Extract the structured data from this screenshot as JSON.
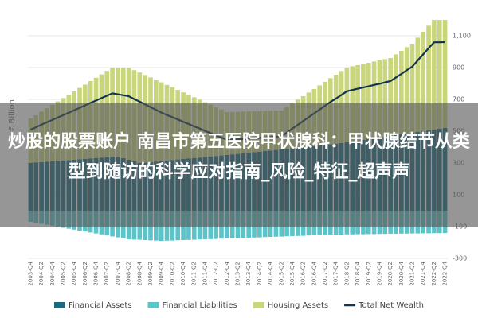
{
  "overlay_title": "炒股的股票账户 南昌市第五医院甲状腺科：甲状腺结节从类型到随访的科学应对指南_风险_特征_超声声",
  "chart_data": {
    "type": "bar",
    "stacked": true,
    "y_label": "€ Billion",
    "categories": [
      "2003-Q4",
      null,
      "2004-Q2",
      null,
      "2004-Q4",
      null,
      "2005-Q2",
      null,
      "2005-Q4",
      null,
      "2006-Q2",
      null,
      "2006-Q4",
      null,
      "2007-Q2",
      null,
      "2007-Q4",
      null,
      "2008-Q2",
      null,
      "2008-Q4",
      null,
      "2009-Q2",
      null,
      "2009-Q4",
      null,
      "2010-Q2",
      null,
      "2010-Q4",
      null,
      "2011-Q2",
      null,
      "2011-Q4",
      null,
      "2012-Q2",
      null,
      "2012-Q4",
      null,
      "2013-Q2",
      null,
      "2013-Q4",
      null,
      "2014-Q2",
      null,
      "2014-Q4",
      null,
      "2015-Q2",
      null,
      "2015-Q4",
      null,
      "2016-Q2",
      null,
      "2016-Q4",
      null,
      "2017-Q2",
      null,
      "2017-Q4",
      null,
      "2018-Q2",
      null,
      "2018-Q4",
      null,
      "2019-Q2",
      null,
      "2019-Q4",
      null,
      "2020-Q2",
      null,
      "2020-Q4",
      null,
      "2021-Q2",
      null,
      "2021-Q4",
      null,
      "2022-Q2",
      null,
      "2022-Q4"
    ],
    "series": [
      {
        "name": "Financial Assets",
        "color": "#1b6a7e",
        "values": [
          300,
          303,
          305,
          308,
          310,
          313,
          315,
          318,
          320,
          323,
          325,
          328,
          330,
          333,
          335,
          338,
          340,
          330,
          320,
          310,
          300,
          303,
          306,
          309,
          313,
          316,
          319,
          322,
          325,
          328,
          331,
          334,
          338,
          341,
          344,
          347,
          350,
          354,
          357,
          361,
          364,
          368,
          371,
          375,
          378,
          382,
          385,
          389,
          392,
          396,
          399,
          403,
          406,
          410,
          413,
          417,
          420,
          425,
          430,
          435,
          440,
          445,
          450,
          455,
          460,
          465,
          470,
          475,
          480,
          485,
          490,
          495,
          500,
          505,
          510,
          515,
          520
        ]
      },
      {
        "name": "Financial Liabilities",
        "color": "#5cc3c8",
        "values": [
          -70,
          -76,
          -82,
          -88,
          -94,
          -101,
          -107,
          -113,
          -119,
          -125,
          -131,
          -137,
          -143,
          -149,
          -156,
          -162,
          -168,
          -174,
          -180,
          -182,
          -183,
          -185,
          -187,
          -188,
          -190,
          -189,
          -188,
          -186,
          -185,
          -184,
          -183,
          -181,
          -180,
          -179,
          -178,
          -176,
          -175,
          -174,
          -173,
          -171,
          -170,
          -169,
          -168,
          -166,
          -165,
          -164,
          -163,
          -161,
          -160,
          -159,
          -158,
          -156,
          -155,
          -154,
          -153,
          -151,
          -150,
          -150,
          -149,
          -149,
          -148,
          -148,
          -147,
          -147,
          -146,
          -146,
          -145,
          -145,
          -144,
          -144,
          -143,
          -143,
          -142,
          -142,
          -141,
          -141,
          -140
        ]
      },
      {
        "name": "Housing Assets",
        "color": "#c9d67b",
        "values": [
          280,
          298,
          318,
          336,
          355,
          374,
          393,
          411,
          431,
          449,
          468,
          487,
          506,
          524,
          544,
          562,
          560,
          570,
          580,
          574,
          569,
          550,
          532,
          513,
          494,
          475,
          457,
          438,
          419,
          401,
          382,
          364,
          344,
          326,
          307,
          289,
          270,
          267,
          265,
          262,
          260,
          257,
          255,
          252,
          250,
          247,
          245,
          264,
          283,
          302,
          321,
          340,
          359,
          378,
          397,
          416,
          435,
          453,
          470,
          473,
          475,
          478,
          480,
          483,
          485,
          488,
          490,
          508,
          525,
          543,
          560,
          593,
          625,
          658,
          690,
          685,
          680
        ]
      },
      {
        "name": "Total Net Wealth",
        "color": "#14344c",
        "type": "line",
        "values": [
          510,
          525,
          541,
          556,
          571,
          586,
          601,
          616,
          632,
          647,
          662,
          678,
          693,
          708,
          723,
          738,
          732,
          726,
          720,
          702,
          686,
          668,
          651,
          634,
          617,
          602,
          588,
          574,
          559,
          545,
          530,
          517,
          502,
          488,
          473,
          460,
          446,
          448,
          449,
          450,
          454,
          456,
          458,
          461,
          463,
          465,
          467,
          492,
          516,
          540,
          564,
          588,
          612,
          636,
          660,
          684,
          705,
          728,
          751,
          759,
          767,
          775,
          782,
          791,
          798,
          807,
          815,
          838,
          860,
          884,
          906,
          945,
          983,
          1022,
          1059,
          1059,
          1060
        ]
      }
    ],
    "ylim": [
      -300,
      1200
    ],
    "yticks": [
      {
        "value": -300,
        "label": "-300"
      },
      {
        "value": -100,
        "label": "-100"
      },
      100,
      300,
      500,
      700,
      900,
      {
        "value": 1100,
        "label": "1,100"
      }
    ],
    "grid": true,
    "legend": "bottom"
  }
}
